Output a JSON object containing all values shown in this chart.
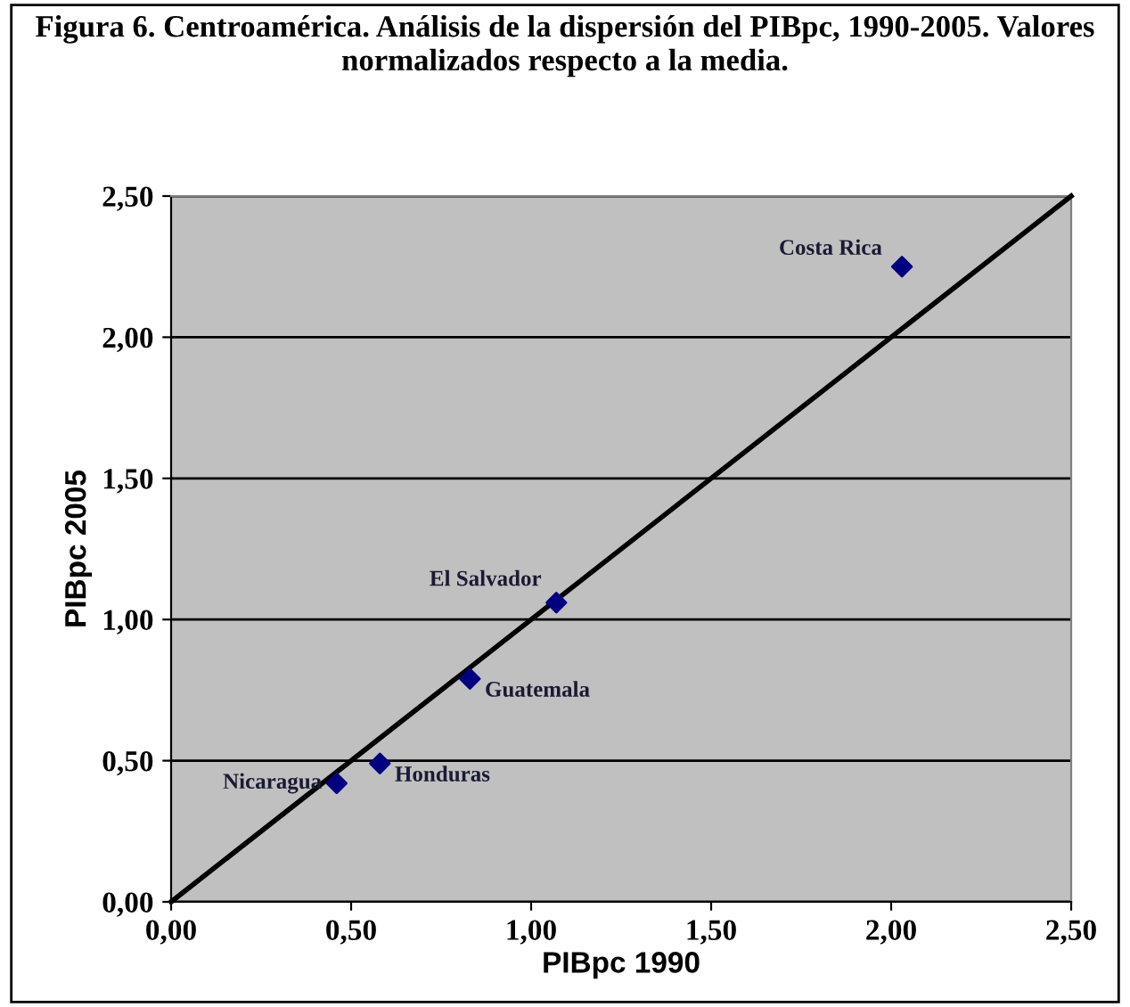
{
  "chart_data": {
    "type": "scatter",
    "title": "Figura 6. Centroamérica. Análisis de la dispersión del PIBpc, 1990-2005. Valores normalizados respecto a la media.",
    "xlabel": "PIBpc 1990",
    "ylabel": "PIBpc 2005",
    "series": [
      {
        "color": "#000080",
        "marker": "diamond",
        "x": [
          2.03,
          1.07,
          0.83,
          0.58,
          0.46
        ],
        "values": [
          2.25,
          1.06,
          0.79,
          0.49,
          0.42
        ]
      },
      {
        "type": "line",
        "color": "#000000",
        "marker": "none",
        "line_style": "solid",
        "x": [
          0,
          2.5
        ],
        "values": [
          0,
          2.5
        ]
      }
    ],
    "annotations": [
      {
        "text": "Costa Rica",
        "x": 2.03,
        "y": 2.25
      },
      {
        "text": "El Salvador",
        "x": 1.07,
        "y": 1.06
      },
      {
        "text": "Guatemala",
        "x": 0.83,
        "y": 0.79
      },
      {
        "text": "Honduras",
        "x": 0.58,
        "y": 0.49
      },
      {
        "text": "Nicaragua",
        "x": 0.46,
        "y": 0.42
      }
    ],
    "xlim": [
      0,
      2.5
    ],
    "ylim": [
      0,
      2.5
    ],
    "xticks": [
      {
        "value": 0,
        "label": "0,00"
      },
      {
        "value": 0.5,
        "label": "0,50"
      },
      {
        "value": 1,
        "label": "1,00"
      },
      {
        "value": 1.5,
        "label": "1,50"
      },
      {
        "value": 2,
        "label": "2,00"
      },
      {
        "value": 2.5,
        "label": "2,50"
      }
    ],
    "yticks": [
      {
        "value": 0,
        "label": "0,00"
      },
      {
        "value": 0.5,
        "label": "0,50"
      },
      {
        "value": 1,
        "label": "1,00"
      },
      {
        "value": 1.5,
        "label": "1,50"
      },
      {
        "value": 2,
        "label": "2,00"
      },
      {
        "value": 2.5,
        "label": "2,50"
      }
    ],
    "grid": "y"
  }
}
